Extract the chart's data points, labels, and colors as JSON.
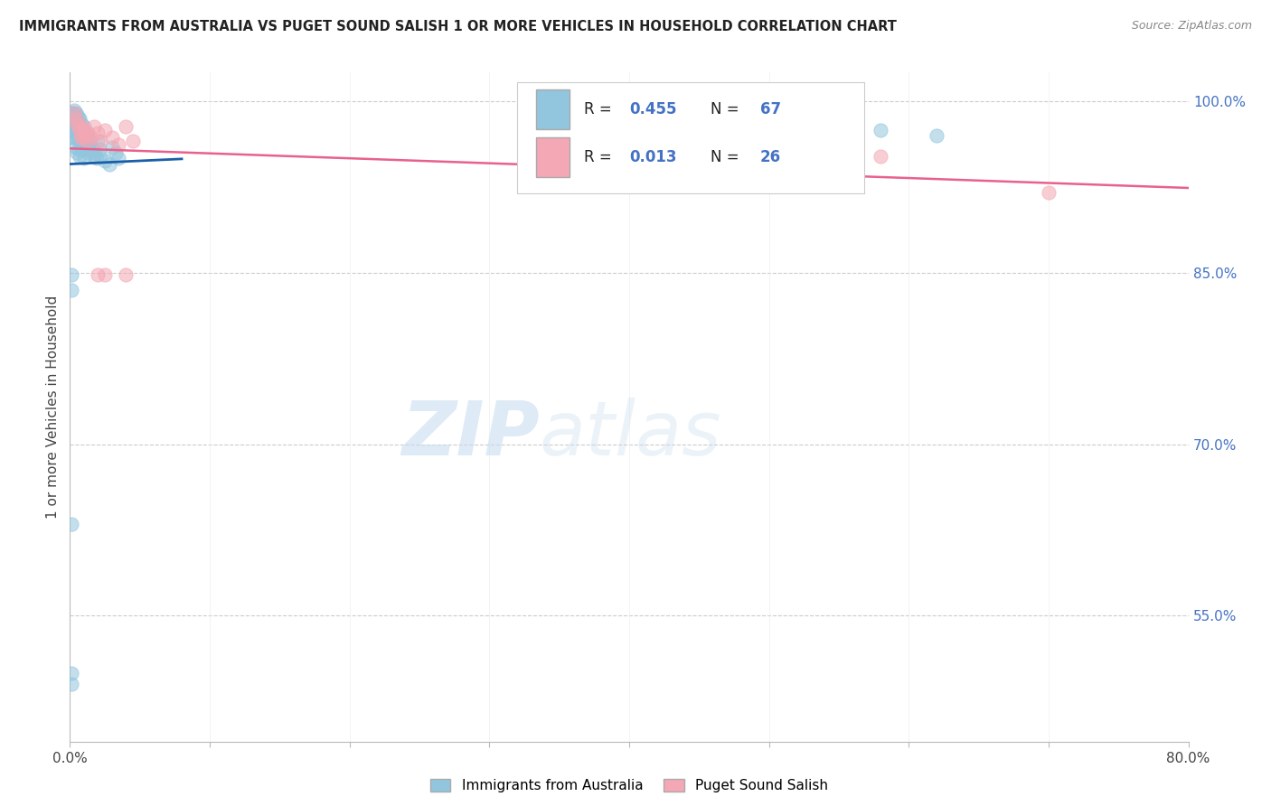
{
  "title": "IMMIGRANTS FROM AUSTRALIA VS PUGET SOUND SALISH 1 OR MORE VEHICLES IN HOUSEHOLD CORRELATION CHART",
  "source": "Source: ZipAtlas.com",
  "ylabel": "1 or more Vehicles in Household",
  "xlim": [
    0.0,
    0.8
  ],
  "ylim": [
    0.44,
    1.025
  ],
  "xticks": [
    0.0,
    0.1,
    0.2,
    0.3,
    0.4,
    0.5,
    0.6,
    0.7,
    0.8
  ],
  "xticklabels": [
    "0.0%",
    "",
    "",
    "",
    "",
    "",
    "",
    "",
    "80.0%"
  ],
  "yticks_right": [
    1.0,
    0.85,
    0.7,
    0.55
  ],
  "yticklabels_right": [
    "100.0%",
    "85.0%",
    "70.0%",
    "55.0%"
  ],
  "legend1_label": "Immigrants from Australia",
  "legend2_label": "Puget Sound Salish",
  "R1": 0.455,
  "N1": 67,
  "R2": 0.013,
  "N2": 26,
  "blue_color": "#92c5de",
  "pink_color": "#f4a7b4",
  "blue_line_color": "#1a5fa8",
  "pink_line_color": "#e8618c",
  "blue_points_x": [
    0.001,
    0.001,
    0.001,
    0.001,
    0.002,
    0.002,
    0.002,
    0.002,
    0.002,
    0.003,
    0.003,
    0.003,
    0.003,
    0.003,
    0.003,
    0.004,
    0.004,
    0.004,
    0.004,
    0.005,
    0.005,
    0.005,
    0.005,
    0.005,
    0.006,
    0.006,
    0.006,
    0.006,
    0.007,
    0.007,
    0.007,
    0.007,
    0.008,
    0.008,
    0.008,
    0.009,
    0.009,
    0.01,
    0.01,
    0.01,
    0.011,
    0.011,
    0.012,
    0.012,
    0.013,
    0.013,
    0.014,
    0.015,
    0.016,
    0.017,
    0.018,
    0.019,
    0.02,
    0.021,
    0.022,
    0.025,
    0.028,
    0.03,
    0.033,
    0.035,
    0.001,
    0.001,
    0.58,
    0.62,
    0.001,
    0.001,
    0.001
  ],
  "blue_points_y": [
    0.99,
    0.985,
    0.98,
    0.975,
    0.99,
    0.985,
    0.98,
    0.975,
    0.968,
    0.992,
    0.988,
    0.985,
    0.98,
    0.975,
    0.968,
    0.99,
    0.985,
    0.978,
    0.96,
    0.988,
    0.983,
    0.978,
    0.968,
    0.955,
    0.985,
    0.98,
    0.97,
    0.958,
    0.985,
    0.978,
    0.965,
    0.952,
    0.98,
    0.97,
    0.958,
    0.975,
    0.96,
    0.978,
    0.965,
    0.95,
    0.97,
    0.958,
    0.972,
    0.96,
    0.968,
    0.955,
    0.965,
    0.96,
    0.958,
    0.952,
    0.955,
    0.95,
    0.965,
    0.958,
    0.952,
    0.948,
    0.945,
    0.96,
    0.955,
    0.95,
    0.848,
    0.835,
    0.975,
    0.97,
    0.5,
    0.49,
    0.63
  ],
  "pink_points_x": [
    0.003,
    0.004,
    0.005,
    0.006,
    0.007,
    0.008,
    0.009,
    0.01,
    0.011,
    0.012,
    0.013,
    0.015,
    0.017,
    0.02,
    0.022,
    0.025,
    0.03,
    0.035,
    0.04,
    0.045,
    0.02,
    0.025,
    0.58,
    0.7,
    0.008,
    0.04
  ],
  "pink_points_y": [
    0.99,
    0.985,
    0.98,
    0.978,
    0.975,
    0.968,
    0.978,
    0.975,
    0.97,
    0.965,
    0.972,
    0.968,
    0.978,
    0.972,
    0.965,
    0.975,
    0.968,
    0.962,
    0.978,
    0.965,
    0.848,
    0.848,
    0.952,
    0.92,
    0.968,
    0.848
  ],
  "watermark_zip": "ZIP",
  "watermark_atlas": "atlas",
  "background_color": "#ffffff"
}
